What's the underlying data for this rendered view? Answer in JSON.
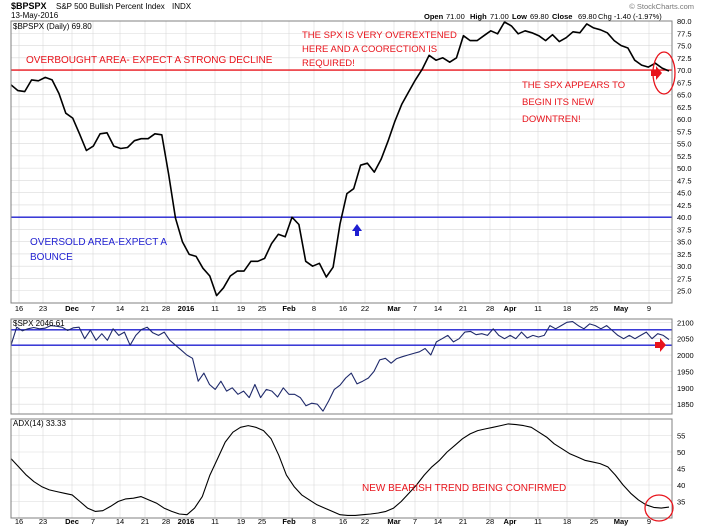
{
  "header": {
    "symbol": "$BPSPX",
    "name": "S&P 500 Bullish Percent Index",
    "exchange": "INDX",
    "date": "13-May-2016",
    "watermark": "© StockCharts.com",
    "open_label": "Open",
    "open": "71.00",
    "high_label": "High",
    "high": "71.00",
    "low_label": "Low",
    "low": "69.80",
    "close_label": "Close",
    "close": "69.80",
    "change": "Chg -1.40 (-1.97%)"
  },
  "colors": {
    "grid": "#d9d9d9",
    "border": "#808080",
    "price_line": "#000000",
    "spx_line": "#1f2a6b",
    "annotation_red": "#e8141c",
    "annotation_blue": "#1f1fd1",
    "hline_red": "#e8141c",
    "hline_blue": "#1f1fd1"
  },
  "x_axis": {
    "ticks": [
      "16",
      "23",
      "Dec",
      "7",
      "14",
      "21",
      "28",
      "2016",
      "11",
      "19",
      "25",
      "Feb",
      "8",
      "16",
      "22",
      "Mar",
      "7",
      "14",
      "21",
      "28",
      "Apr",
      "11",
      "18",
      "25",
      "May",
      "9"
    ],
    "bold_ticks": [
      "Dec",
      "2016",
      "Feb",
      "Mar",
      "Apr",
      "May"
    ]
  },
  "chart_data": [
    {
      "type": "line",
      "title": "$BPSPX (Daily) 69.80",
      "ylim": [
        22.5,
        80
      ],
      "y_ticks": [
        25,
        27.5,
        30,
        32.5,
        35,
        37.5,
        40,
        42.5,
        45,
        47.5,
        50,
        52.5,
        55,
        57.5,
        60,
        62.5,
        65,
        67.5,
        70,
        72.5,
        75,
        77.5,
        80
      ],
      "series": [
        {
          "values": [
            67.0,
            65.8,
            65.6,
            68.0,
            67.8,
            68.5,
            68.0,
            65.2,
            61.2,
            60.2,
            57.0,
            53.6,
            54.5,
            57.0,
            57.2,
            54.5,
            54.0,
            54.2,
            55.6,
            56.0,
            56.0,
            57.0,
            56.8,
            48.8,
            39.8,
            35.0,
            32.4,
            32.0,
            29.6,
            28.0,
            24.0,
            25.6,
            28.0,
            29.0,
            29.0,
            31.0,
            31.0,
            31.6,
            34.6,
            36.5,
            36.0,
            40.0,
            38.5,
            31.0,
            30.0,
            30.6,
            27.8,
            29.8,
            38.6,
            44.8,
            45.8,
            50.6,
            51.0,
            49.2,
            51.8,
            55.5,
            59.5,
            63.0,
            65.5,
            68.0,
            70.2,
            73.0,
            72.0,
            72.5,
            71.6,
            72.5,
            77.0,
            76.0,
            76.0,
            77.0,
            78.0,
            77.4,
            79.8,
            79.0,
            77.4,
            78.0,
            77.6,
            77.0,
            76.0,
            77.2,
            75.8,
            76.6,
            77.8,
            77.6,
            79.4,
            78.6,
            78.2,
            77.6,
            76.0,
            75.0,
            74.5,
            72.0,
            71.0,
            70.6,
            71.4,
            70.4,
            69.8
          ]
        }
      ],
      "hlines": [
        {
          "value": 70,
          "color": "red"
        },
        {
          "value": 40,
          "color": "blue"
        }
      ],
      "annotations": [
        {
          "text_lines": [
            "OVERBOUGHT AREA- EXPECT A STRONG DECLINE"
          ],
          "color": "red"
        },
        {
          "text_lines": [
            "THE SPX IS VERY OVEREXTENED",
            "HERE AND A COORECTION IS",
            "REQUIRED!"
          ],
          "color": "red"
        },
        {
          "text_lines": [
            "THE SPX APPEARS TO",
            "BEGIN ITS NEW",
            "DOWNTREN!"
          ],
          "color": "red"
        },
        {
          "text_lines": [
            "OVERSOLD AREA-EXPECT A",
            "BOUNCE"
          ],
          "color": "blue"
        }
      ],
      "grid": true
    },
    {
      "type": "line",
      "title": "$SPX 2046.61",
      "ylim": [
        1820,
        2110
      ],
      "y_ticks": [
        1850,
        1900,
        1950,
        2000,
        2050,
        2100
      ],
      "series": [
        {
          "values": [
            2030,
            2085,
            2074,
            2080,
            2084,
            2080,
            2082,
            2090,
            2088,
            2085,
            2075,
            2083,
            2085,
            2050,
            2076,
            2045,
            2065,
            2045,
            2080,
            2060,
            2070,
            2030,
            2060,
            2078,
            2085,
            2068,
            2060,
            2070,
            2045,
            2030,
            2015,
            2000,
            1990,
            1920,
            1945,
            1910,
            1895,
            1920,
            1890,
            1900,
            1880,
            1890,
            1870,
            1910,
            1870,
            1895,
            1890,
            1872,
            1900,
            1880,
            1880,
            1870,
            1845,
            1853,
            1850,
            1829,
            1860,
            1895,
            1908,
            1930,
            1945,
            1912,
            1920,
            1930,
            1950,
            1985,
            1990,
            1975,
            1989,
            1995,
            2000,
            2005,
            2010,
            2020,
            2000,
            2040,
            2050,
            2060,
            2040,
            2050,
            2070,
            2072,
            2062,
            2065,
            2060,
            2080,
            2060,
            2050,
            2060,
            2050,
            2070,
            2052,
            2060,
            2055,
            2060,
            2090,
            2080,
            2090,
            2100,
            2102,
            2090,
            2080,
            2095,
            2090,
            2080,
            2090,
            2075,
            2060,
            2050,
            2060,
            2050,
            2060,
            2070,
            2050,
            2065,
            2060,
            2047
          ]
        }
      ],
      "hlines": [
        {
          "value": 2077,
          "color": "blue"
        },
        {
          "value": 2030,
          "color": "blue"
        }
      ],
      "grid": true
    },
    {
      "type": "line",
      "title": "ADX(14) 33.33",
      "ylim": [
        30,
        60
      ],
      "y_ticks": [
        35,
        40,
        45,
        50,
        55
      ],
      "series": [
        {
          "values": [
            48.0,
            45.5,
            43.0,
            41.0,
            39.5,
            38.5,
            38.0,
            37.5,
            37.0,
            35.0,
            33.0,
            32.0,
            32.2,
            33.5,
            35.0,
            35.8,
            36.0,
            36.5,
            35.5,
            34.5,
            33.0,
            32.0,
            31.2,
            31.0,
            33.0,
            36.5,
            43.0,
            48.0,
            53.0,
            56.0,
            57.5,
            58.0,
            57.5,
            56.5,
            54.0,
            49.0,
            43.0,
            39.5,
            37.0,
            35.5,
            34.0,
            33.0,
            32.0,
            31.0,
            30.8,
            30.8,
            31.0,
            31.2,
            31.5,
            32.0,
            33.0,
            35.0,
            37.5,
            40.0,
            43.0,
            45.5,
            47.5,
            50.0,
            52.0,
            54.0,
            55.5,
            56.5,
            57.0,
            57.5,
            58.0,
            58.5,
            58.3,
            58.0,
            57.5,
            56.0,
            54.5,
            52.5,
            51.0,
            49.5,
            48.5,
            47.5,
            47.0,
            46.5,
            45.5,
            43.0,
            40.0,
            37.5,
            35.5,
            34.0,
            33.2,
            33.0,
            33.3
          ]
        }
      ],
      "annotations": [
        {
          "text_lines": [
            "NEW BEARISH TREND BEING CONFIRMED"
          ],
          "color": "red"
        }
      ],
      "grid": true
    }
  ]
}
